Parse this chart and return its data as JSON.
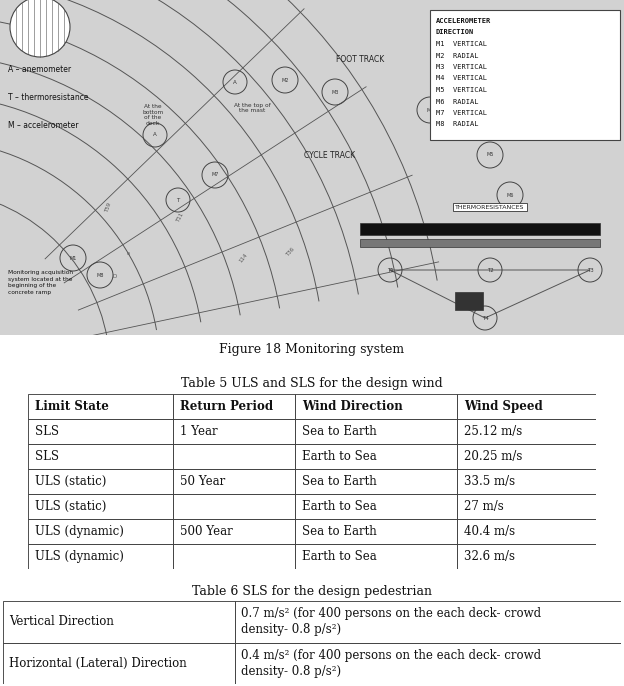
{
  "fig_caption": "Figure 18 Monitoring system",
  "table5_title": "Table 5 ULS and SLS for the design wind",
  "table5_headers": [
    "Limit State",
    "Return Period",
    "Wind Direction",
    "Wind Speed"
  ],
  "table5_rows": [
    [
      "SLS",
      "1 Year",
      "Sea to Earth",
      "25.12 m/s"
    ],
    [
      "SLS",
      "",
      "Earth to Sea",
      "20.25 m/s"
    ],
    [
      "ULS (static)",
      "50 Year",
      "Sea to Earth",
      "33.5 m/s"
    ],
    [
      "ULS (static)",
      "",
      "Earth to Sea",
      "27 m/s"
    ],
    [
      "ULS (dynamic)",
      "500 Year",
      "Sea to Earth",
      "40.4 m/s"
    ],
    [
      "ULS (dynamic)",
      "",
      "Earth to Sea",
      "32.6 m/s"
    ]
  ],
  "table6_title": "Table 6 SLS for the design pedestrian",
  "table6_rows": [
    [
      "Vertical Direction",
      "0.7 m/s² (for 400 persons on the each deck- crowd\ndensity- 0.8 p/s²)"
    ],
    [
      "Horizontal (Lateral) Direction",
      "0.4 m/s² (for 400 persons on the each deck- crowd\ndensity- 0.8 p/s²)"
    ]
  ],
  "legend_lines": [
    "ACCELEROMETER",
    "DIRECTION",
    "M1  VERTICAL",
    "M2  RADIAL",
    "M3  VERTICAL",
    "M4  VERTICAL",
    "M5  VERTICAL",
    "M6  RADIAL",
    "M7  VERTICAL",
    "M8  RADIAL"
  ],
  "diagram_labels_left": [
    "A – anemometer",
    "T – thermoresistance",
    "M – accelerometer"
  ],
  "foot_track_label": "FOOT TRACK",
  "cycle_track_label": "CYCLE TRACK",
  "thermoresistances_label": "THERMORESISTANCES",
  "monitoring_note": "Monitoring acquisition\nsystem located at the\nbeginning of the\nconcrete ramp",
  "bg_color": "#ffffff",
  "font_size_table": 8.5,
  "diag_bg": "#cccccc"
}
